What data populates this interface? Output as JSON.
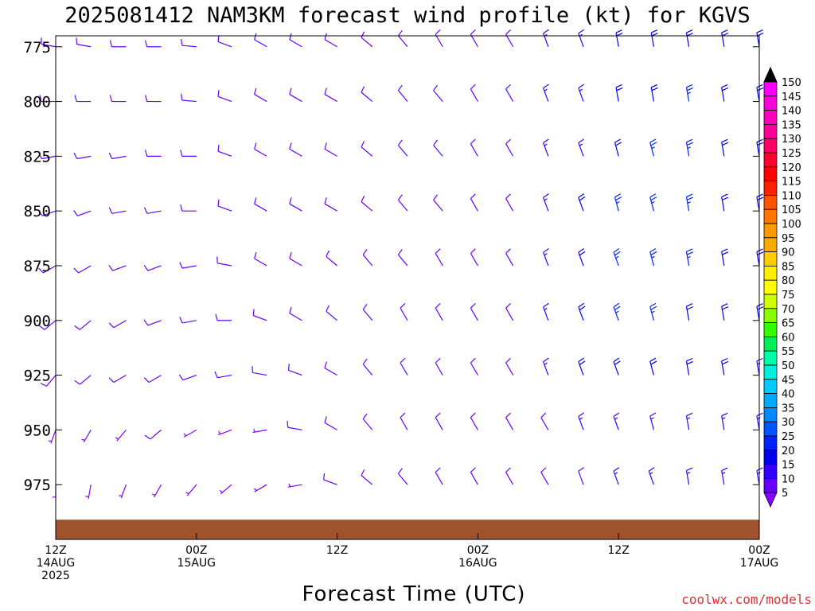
{
  "title": "2025081412 NAM3KM forecast wind profile (kt) for KGVS",
  "footer": {
    "xaxis_title": "Forecast Time (UTC)",
    "credit": "coolwx.com/models"
  },
  "chart_data": {
    "type": "wind_barb_time_height",
    "title": "2025081412 NAM3KM forecast wind profile (kt) for KGVS",
    "xlabel": "Forecast Time (UTC)",
    "ylabel": "",
    "units": "kt",
    "xlim_hours": [
      0,
      60
    ],
    "ylim_hpa": [
      770,
      1000
    ],
    "y_ticks": [
      775,
      800,
      825,
      850,
      875,
      900,
      925,
      950,
      975
    ],
    "x_ticks": [
      {
        "hour": 0,
        "label": [
          "12Z",
          "14AUG",
          "2025"
        ]
      },
      {
        "hour": 12,
        "label": [
          "00Z",
          "15AUG"
        ]
      },
      {
        "hour": 24,
        "label": [
          "12Z"
        ]
      },
      {
        "hour": 36,
        "label": [
          "00Z",
          "16AUG"
        ]
      },
      {
        "hour": 48,
        "label": [
          "12Z"
        ]
      },
      {
        "hour": 60,
        "label": [
          "00Z",
          "17AUG"
        ]
      }
    ],
    "colorbar": {
      "levels": [
        5,
        10,
        15,
        20,
        25,
        30,
        35,
        40,
        45,
        50,
        55,
        60,
        65,
        70,
        75,
        80,
        85,
        90,
        95,
        100,
        105,
        110,
        115,
        120,
        125,
        130,
        135,
        140,
        145,
        150
      ],
      "colors": [
        "#8800ff",
        "#6600ff",
        "#3300ff",
        "#0000ee",
        "#0022ff",
        "#0055ff",
        "#0088ff",
        "#00aaff",
        "#00ccff",
        "#00eedd",
        "#00ffaa",
        "#00ee55",
        "#33ff00",
        "#88ff00",
        "#ccff00",
        "#ffff00",
        "#ffee00",
        "#ffcc00",
        "#ffaa00",
        "#ff9900",
        "#ff7700",
        "#ff5500",
        "#ff2200",
        "#ff0000",
        "#ff0033",
        "#ff0066",
        "#ff0099",
        "#ff00bb",
        "#ff00dd",
        "#ff00ff"
      ]
    },
    "terrain_color": "#a0522d",
    "surface_pressure_hpa": 991,
    "hours": [
      0,
      3,
      6,
      9,
      12,
      15,
      18,
      21,
      24,
      27,
      30,
      33,
      36,
      39,
      42,
      45,
      48,
      51,
      54,
      57,
      60
    ],
    "levels_hpa": [
      775,
      800,
      825,
      850,
      875,
      900,
      925,
      950,
      975
    ],
    "series": [
      {
        "name": "wind_direction_deg",
        "values": [
          [
            280,
            280,
            270,
            270,
            275,
            290,
            300,
            300,
            300,
            310,
            320,
            330,
            330,
            330,
            340,
            340,
            350,
            350,
            350,
            350,
            350
          ],
          [
            270,
            270,
            270,
            270,
            275,
            290,
            300,
            300,
            300,
            310,
            320,
            320,
            330,
            330,
            340,
            340,
            350,
            350,
            350,
            350,
            350
          ],
          [
            260,
            260,
            260,
            270,
            270,
            290,
            300,
            300,
            300,
            310,
            320,
            320,
            330,
            330,
            340,
            340,
            345,
            345,
            350,
            350,
            350
          ],
          [
            250,
            250,
            260,
            260,
            270,
            290,
            300,
            300,
            300,
            310,
            320,
            320,
            330,
            330,
            340,
            340,
            345,
            345,
            350,
            350,
            350
          ],
          [
            240,
            240,
            250,
            250,
            260,
            280,
            300,
            300,
            310,
            320,
            320,
            330,
            330,
            330,
            340,
            340,
            340,
            345,
            350,
            350,
            350
          ],
          [
            230,
            230,
            240,
            250,
            260,
            270,
            290,
            300,
            310,
            320,
            330,
            330,
            330,
            330,
            340,
            340,
            340,
            345,
            350,
            350,
            350
          ],
          [
            220,
            230,
            240,
            240,
            250,
            260,
            280,
            290,
            300,
            320,
            330,
            330,
            330,
            330,
            340,
            340,
            340,
            345,
            350,
            350,
            350
          ],
          [
            200,
            210,
            220,
            230,
            240,
            250,
            260,
            280,
            300,
            320,
            330,
            330,
            330,
            330,
            330,
            340,
            340,
            345,
            350,
            350,
            350
          ],
          [
            180,
            190,
            200,
            210,
            220,
            230,
            240,
            260,
            290,
            310,
            320,
            330,
            330,
            330,
            330,
            340,
            340,
            340,
            350,
            350,
            350
          ]
        ]
      },
      {
        "name": "wind_speed_kt",
        "values": [
          [
            10,
            10,
            10,
            10,
            10,
            10,
            10,
            10,
            10,
            10,
            10,
            10,
            10,
            10,
            15,
            15,
            20,
            20,
            20,
            20,
            20
          ],
          [
            10,
            10,
            10,
            10,
            10,
            10,
            10,
            10,
            10,
            10,
            10,
            10,
            10,
            10,
            15,
            15,
            20,
            20,
            25,
            20,
            20
          ],
          [
            10,
            10,
            10,
            10,
            10,
            10,
            10,
            10,
            10,
            10,
            10,
            10,
            10,
            10,
            15,
            15,
            20,
            25,
            25,
            20,
            20
          ],
          [
            10,
            10,
            10,
            10,
            10,
            10,
            10,
            10,
            10,
            10,
            10,
            10,
            10,
            10,
            15,
            20,
            25,
            25,
            25,
            20,
            20
          ],
          [
            10,
            10,
            10,
            10,
            10,
            10,
            10,
            10,
            10,
            10,
            10,
            10,
            10,
            10,
            15,
            20,
            25,
            25,
            25,
            20,
            20
          ],
          [
            10,
            10,
            10,
            10,
            10,
            10,
            10,
            10,
            10,
            10,
            10,
            10,
            10,
            10,
            15,
            20,
            25,
            25,
            20,
            20,
            20
          ],
          [
            10,
            10,
            10,
            10,
            10,
            10,
            10,
            10,
            10,
            10,
            10,
            10,
            10,
            10,
            15,
            20,
            20,
            20,
            20,
            20,
            15
          ],
          [
            5,
            5,
            5,
            10,
            5,
            5,
            5,
            10,
            10,
            10,
            10,
            10,
            10,
            10,
            10,
            15,
            15,
            15,
            15,
            15,
            15
          ],
          [
            5,
            5,
            5,
            5,
            5,
            5,
            5,
            5,
            10,
            10,
            10,
            10,
            10,
            10,
            10,
            10,
            15,
            15,
            15,
            15,
            15
          ]
        ]
      }
    ]
  }
}
